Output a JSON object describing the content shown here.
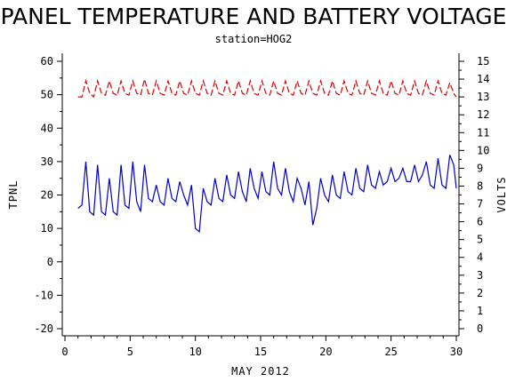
{
  "chart_data": {
    "type": "line",
    "title": "PANEL TEMPERATURE AND BATTERY VOLTAGE",
    "subtitle": "station=HOG2",
    "xlabel": "MAY 2012",
    "ylabel_left": "TPNL",
    "ylabel_right": "VOLTS",
    "xlim": [
      0,
      30
    ],
    "ylim_left": [
      -20,
      60
    ],
    "ylim_right": [
      0,
      15
    ],
    "x_ticks": [
      0,
      5,
      10,
      15,
      20,
      25,
      30
    ],
    "y_left_ticks": [
      -20,
      -10,
      0,
      10,
      20,
      30,
      40,
      50,
      60
    ],
    "y_right_ticks": [
      0,
      1,
      2,
      3,
      4,
      5,
      6,
      7,
      8,
      9,
      10,
      11,
      12,
      13,
      14,
      15
    ],
    "grid": false,
    "series": [
      {
        "color": "#0000cc",
        "axis": "left",
        "style": "solid",
        "x": [
          1.0,
          1.3,
          1.6,
          1.9,
          2.2,
          2.5,
          2.8,
          3.1,
          3.4,
          3.7,
          4.0,
          4.3,
          4.6,
          4.9,
          5.2,
          5.5,
          5.8,
          6.1,
          6.4,
          6.7,
          7.0,
          7.3,
          7.6,
          7.9,
          8.2,
          8.5,
          8.8,
          9.1,
          9.4,
          9.7,
          10.0,
          10.3,
          10.6,
          10.9,
          11.2,
          11.5,
          11.8,
          12.1,
          12.4,
          12.7,
          13.0,
          13.3,
          13.6,
          13.9,
          14.2,
          14.5,
          14.8,
          15.1,
          15.4,
          15.7,
          16.0,
          16.3,
          16.6,
          16.9,
          17.2,
          17.5,
          17.8,
          18.1,
          18.4,
          18.7,
          19.0,
          19.3,
          19.6,
          19.9,
          20.2,
          20.5,
          20.8,
          21.1,
          21.4,
          21.7,
          22.0,
          22.3,
          22.6,
          22.9,
          23.2,
          23.5,
          23.8,
          24.1,
          24.4,
          24.7,
          25.0,
          25.3,
          25.6,
          25.9,
          26.2,
          26.5,
          26.8,
          27.1,
          27.4,
          27.7,
          28.0,
          28.3,
          28.6,
          28.9,
          29.2,
          29.5,
          29.8,
          30.0
        ],
        "y": [
          16,
          17,
          30,
          15,
          14,
          29,
          15,
          14,
          25,
          15,
          14,
          29,
          17,
          16,
          30,
          18,
          15,
          29,
          19,
          18,
          23,
          18,
          17,
          25,
          19,
          18,
          24,
          20,
          17,
          23,
          10,
          9,
          22,
          18,
          17,
          25,
          19,
          18,
          26,
          20,
          19,
          27,
          21,
          18,
          28,
          22,
          19,
          27,
          21,
          20,
          30,
          22,
          20,
          28,
          21,
          18,
          25,
          22,
          17,
          24,
          11,
          16,
          25,
          20,
          18,
          26,
          20,
          19,
          27,
          21,
          20,
          28,
          22,
          21,
          29,
          23,
          22,
          27,
          23,
          24,
          28,
          24,
          25,
          28,
          24,
          24,
          29,
          24,
          26,
          30,
          23,
          22,
          31,
          23,
          22,
          32,
          29,
          22
        ]
      },
      {
        "color": "#dd0000",
        "axis": "right",
        "style": "dashed",
        "x": [
          1.0,
          1.3,
          1.6,
          1.9,
          2.2,
          2.5,
          2.8,
          3.1,
          3.4,
          3.7,
          4.0,
          4.3,
          4.6,
          4.9,
          5.2,
          5.5,
          5.8,
          6.1,
          6.4,
          6.7,
          7.0,
          7.3,
          7.6,
          7.9,
          8.2,
          8.5,
          8.8,
          9.1,
          9.4,
          9.7,
          10.0,
          10.3,
          10.6,
          10.9,
          11.2,
          11.5,
          11.8,
          12.1,
          12.4,
          12.7,
          13.0,
          13.3,
          13.6,
          13.9,
          14.2,
          14.5,
          14.8,
          15.1,
          15.4,
          15.7,
          16.0,
          16.3,
          16.6,
          16.9,
          17.2,
          17.5,
          17.8,
          18.1,
          18.4,
          18.7,
          19.0,
          19.3,
          19.6,
          19.9,
          20.2,
          20.5,
          20.8,
          21.1,
          21.4,
          21.7,
          22.0,
          22.3,
          22.6,
          22.9,
          23.2,
          23.5,
          23.8,
          24.1,
          24.4,
          24.7,
          25.0,
          25.3,
          25.6,
          25.9,
          26.2,
          26.5,
          26.8,
          27.1,
          27.4,
          27.7,
          28.0,
          28.3,
          28.6,
          28.9,
          29.2,
          29.5,
          29.8,
          30.0
        ],
        "y": [
          13.0,
          13.0,
          13.9,
          13.2,
          13.0,
          13.9,
          13.2,
          13.1,
          13.9,
          13.2,
          13.1,
          13.9,
          13.2,
          13.1,
          13.9,
          13.2,
          13.1,
          14.0,
          13.2,
          13.1,
          13.9,
          13.2,
          13.1,
          13.9,
          13.2,
          13.1,
          13.9,
          13.2,
          13.1,
          13.9,
          13.2,
          13.1,
          13.9,
          13.2,
          13.1,
          13.9,
          13.2,
          13.1,
          13.9,
          13.2,
          13.1,
          13.9,
          13.2,
          13.1,
          13.9,
          13.2,
          13.1,
          13.9,
          13.2,
          13.1,
          13.9,
          13.2,
          13.1,
          13.9,
          13.2,
          13.1,
          13.9,
          13.2,
          13.1,
          13.9,
          13.2,
          13.1,
          13.9,
          13.2,
          13.1,
          13.9,
          13.2,
          13.1,
          13.9,
          13.2,
          13.1,
          13.9,
          13.2,
          13.1,
          13.9,
          13.2,
          13.1,
          13.9,
          13.2,
          13.1,
          13.9,
          13.2,
          13.1,
          13.9,
          13.2,
          13.1,
          13.9,
          13.2,
          13.1,
          13.9,
          13.2,
          13.1,
          13.9,
          13.2,
          13.1,
          13.8,
          13.2,
          13.0
        ]
      }
    ]
  }
}
